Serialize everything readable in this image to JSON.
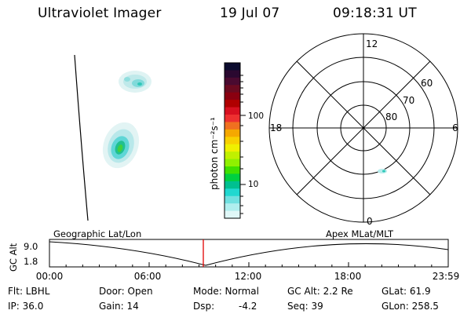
{
  "header": {
    "instrument": "Ultraviolet Imager",
    "date": "19 Jul 07",
    "time": "09:18:31 UT"
  },
  "colorbar": {
    "label": "photon cm⁻²s⁻¹",
    "ticks": [
      "100",
      "10"
    ],
    "colors": [
      "#0b0b2e",
      "#2a0830",
      "#4a0a30",
      "#6b0a20",
      "#8a0010",
      "#b00000",
      "#d81020",
      "#ee3030",
      "#f07020",
      "#f5a800",
      "#f8d000",
      "#f0f000",
      "#c0f000",
      "#90f000",
      "#40e000",
      "#00d040",
      "#00c090",
      "#20d8d0",
      "#70e0e0",
      "#b0eeee",
      "#e0f8f8"
    ]
  },
  "polar_plot": {
    "mlt_labels": {
      "top": "12",
      "left": "18",
      "right": "6",
      "bottom": "0"
    },
    "lat_labels": [
      "60",
      "70",
      "80"
    ]
  },
  "timeline": {
    "y_label": "GC Alt",
    "y_ticks": [
      "9.0",
      "1.8"
    ],
    "left_title": "Geographic Lat/Lon",
    "right_title": "Apex MLat/MLT",
    "x_ticks": [
      "00:00",
      "06:00",
      "12:00",
      "18:00",
      "23:59"
    ],
    "marker_color": "#e00000"
  },
  "footer": {
    "filter": "Flt: LBHL",
    "ip": "IP: 36.0",
    "door": "Door: Open",
    "gain": "Gain: 14",
    "mode": "Mode: Normal",
    "dsp_label": "Dsp:",
    "dsp_value": "-4.2",
    "gc_alt": "GC Alt: 2.2 Re",
    "seq": "Seq: 39",
    "glat": "GLat: 61.9",
    "glon": "GLon: 258.5"
  }
}
